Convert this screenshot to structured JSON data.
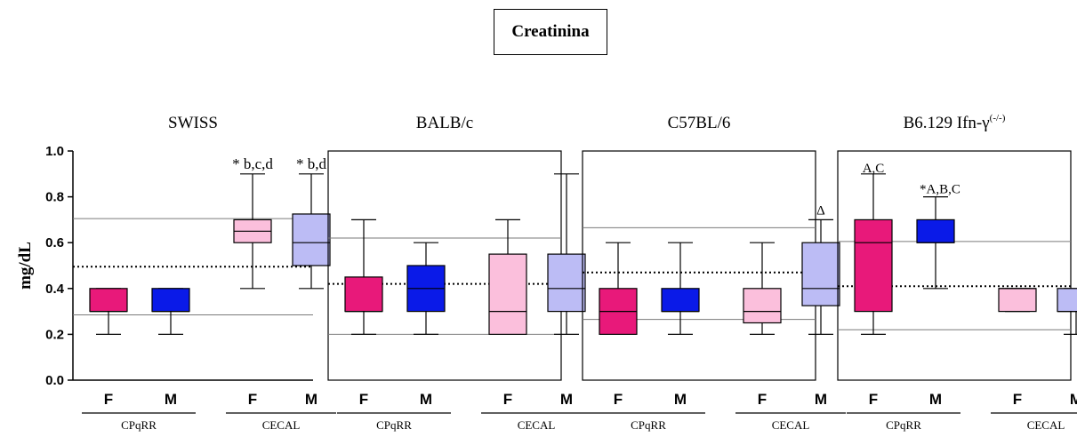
{
  "title": "Creatinina",
  "chart_data": [
    {
      "type": "box",
      "panel_title": "SWISS",
      "ylabel": "mg/dL",
      "ylim": [
        0,
        1.0
      ],
      "yticks": [
        "0.0",
        "0.2",
        "0.4",
        "0.6",
        "0.8",
        "1.0"
      ],
      "categories": [
        "F",
        "M",
        "F",
        "M"
      ],
      "groups": [
        "CPqRR",
        "CECAL"
      ],
      "boxes": [
        {
          "min": 0.2,
          "q1": 0.3,
          "median": 0.3,
          "q3": 0.4,
          "max": 0.4,
          "color": "#e8197a",
          "label": ""
        },
        {
          "min": 0.2,
          "q1": 0.3,
          "median": 0.3,
          "q3": 0.4,
          "max": 0.4,
          "color": "#0a1ae8",
          "label": ""
        },
        {
          "min": 0.4,
          "q1": 0.6,
          "median": 0.65,
          "q3": 0.7,
          "max": 0.9,
          "color": "#fbbfdc",
          "label": "* b,c,d"
        },
        {
          "min": 0.4,
          "q1": 0.5,
          "median": 0.6,
          "q3": 0.725,
          "max": 0.9,
          "color": "#bcbcf5",
          "label": "* b,d"
        }
      ],
      "ref_low": 0.285,
      "ref_high": 0.705,
      "mean_line": 0.495
    },
    {
      "type": "box",
      "panel_title": "BALB/c",
      "ylim": [
        0,
        1.0
      ],
      "categories": [
        "F",
        "M",
        "F",
        "M"
      ],
      "groups": [
        "CPqRR",
        "CECAL"
      ],
      "boxes": [
        {
          "min": 0.2,
          "q1": 0.3,
          "median": 0.3,
          "q3": 0.45,
          "max": 0.7,
          "color": "#e8197a",
          "label": ""
        },
        {
          "min": 0.2,
          "q1": 0.3,
          "median": 0.4,
          "q3": 0.5,
          "max": 0.6,
          "color": "#0a1ae8",
          "label": ""
        },
        {
          "min": 0.2,
          "q1": 0.2,
          "median": 0.3,
          "q3": 0.55,
          "max": 0.7,
          "color": "#fbbfdc",
          "label": ""
        },
        {
          "min": 0.2,
          "q1": 0.3,
          "median": 0.4,
          "q3": 0.55,
          "max": 0.9,
          "color": "#bcbcf5",
          "label": ""
        }
      ],
      "ref_low": 0.2,
      "ref_high": 0.62,
      "mean_line": 0.42
    },
    {
      "type": "box",
      "panel_title": "C57BL/6",
      "ylim": [
        0,
        1.0
      ],
      "categories": [
        "F",
        "M",
        "F",
        "M"
      ],
      "groups": [
        "CPqRR",
        "CECAL"
      ],
      "boxes": [
        {
          "min": 0.2,
          "q1": 0.2,
          "median": 0.3,
          "q3": 0.4,
          "max": 0.6,
          "color": "#e8197a",
          "label": ""
        },
        {
          "min": 0.2,
          "q1": 0.3,
          "median": 0.3,
          "q3": 0.4,
          "max": 0.6,
          "color": "#0a1ae8",
          "label": ""
        },
        {
          "min": 0.2,
          "q1": 0.25,
          "median": 0.3,
          "q3": 0.4,
          "max": 0.6,
          "color": "#fbbfdc",
          "label": ""
        },
        {
          "min": 0.2,
          "q1": 0.325,
          "median": 0.4,
          "q3": 0.6,
          "max": 0.7,
          "color": "#bcbcf5",
          "label": "Δ"
        }
      ],
      "ref_low": 0.265,
      "ref_high": 0.665,
      "mean_line": 0.47
    },
    {
      "type": "box",
      "panel_title": "B6.129 Ifn-γ",
      "panel_title_sup": "(-/-)",
      "ylim": [
        0,
        1.0
      ],
      "categories": [
        "F",
        "M",
        "F",
        "M"
      ],
      "groups": [
        "CPqRR",
        "CECAL"
      ],
      "boxes": [
        {
          "min": 0.2,
          "q1": 0.3,
          "median": 0.6,
          "q3": 0.7,
          "max": 0.9,
          "color": "#e8197a",
          "label": "A,C"
        },
        {
          "min": 0.4,
          "q1": 0.6,
          "median": 0.6,
          "q3": 0.7,
          "max": 0.8,
          "color": "#0a1ae8",
          "label": "*A,B,C"
        },
        {
          "min": 0.3,
          "q1": 0.3,
          "median": 0.4,
          "q3": 0.4,
          "max": 0.4,
          "color": "#fbbfdc",
          "label": ""
        },
        {
          "min": 0.2,
          "q1": 0.3,
          "median": 0.3,
          "q3": 0.4,
          "max": 0.4,
          "color": "#bcbcf5",
          "label": ""
        }
      ],
      "ref_low": 0.22,
      "ref_high": 0.605,
      "mean_line": 0.41
    }
  ]
}
